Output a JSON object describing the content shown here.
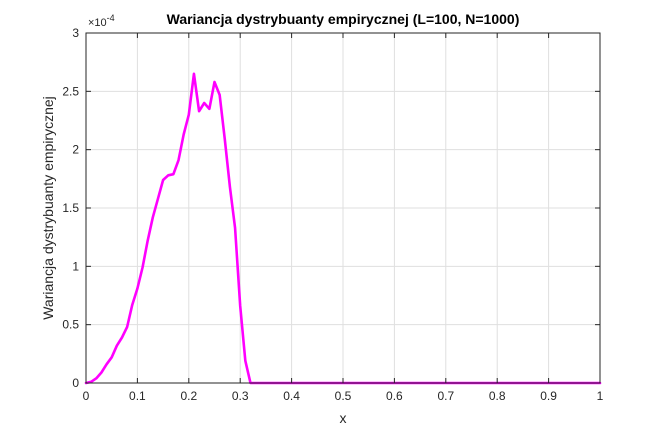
{
  "chart_data": {
    "type": "line",
    "title": "Wariancja dystrybuanty empirycznej (L=100, N=1000)",
    "xlabel": "x",
    "ylabel": "Wariancja dystrybuanty empirycznej",
    "y_exponent_label": "×10",
    "y_exponent_power": "-4",
    "xlim": [
      0,
      1
    ],
    "ylim": [
      0,
      3
    ],
    "y_scale_factor": 0.0001,
    "grid": true,
    "x_ticks": [
      0,
      0.1,
      0.2,
      0.3,
      0.4,
      0.5,
      0.6,
      0.7,
      0.8,
      0.9,
      1
    ],
    "x_tick_labels": [
      "0",
      "0.1",
      "0.2",
      "0.3",
      "0.4",
      "0.5",
      "0.6",
      "0.7",
      "0.8",
      "0.9",
      "1"
    ],
    "y_ticks": [
      0,
      0.5,
      1,
      1.5,
      2,
      2.5,
      3
    ],
    "y_tick_labels": [
      "0",
      "0.5",
      "1",
      "1.5",
      "2",
      "2.5",
      "3"
    ],
    "series": [
      {
        "color": "#ff00ff",
        "x": [
          0,
          0.01,
          0.02,
          0.03,
          0.04,
          0.05,
          0.06,
          0.07,
          0.08,
          0.09,
          0.1,
          0.11,
          0.12,
          0.13,
          0.14,
          0.15,
          0.16,
          0.17,
          0.18,
          0.19,
          0.2,
          0.21,
          0.22,
          0.23,
          0.24,
          0.25,
          0.26,
          0.27,
          0.28,
          0.29,
          0.3,
          0.31,
          0.32,
          0.33,
          0.34,
          0.35,
          0.4,
          0.5,
          0.6,
          0.7,
          0.8,
          0.9,
          1.0
        ],
        "y": [
          0,
          0.01,
          0.04,
          0.09,
          0.16,
          0.22,
          0.32,
          0.39,
          0.48,
          0.67,
          0.81,
          0.99,
          1.22,
          1.42,
          1.58,
          1.74,
          1.78,
          1.79,
          1.91,
          2.13,
          2.3,
          2.65,
          2.33,
          2.4,
          2.35,
          2.58,
          2.47,
          2.09,
          1.68,
          1.33,
          0.66,
          0.19,
          0.0,
          0,
          0,
          0,
          0,
          0,
          0,
          0,
          0,
          0,
          0
        ]
      }
    ]
  }
}
